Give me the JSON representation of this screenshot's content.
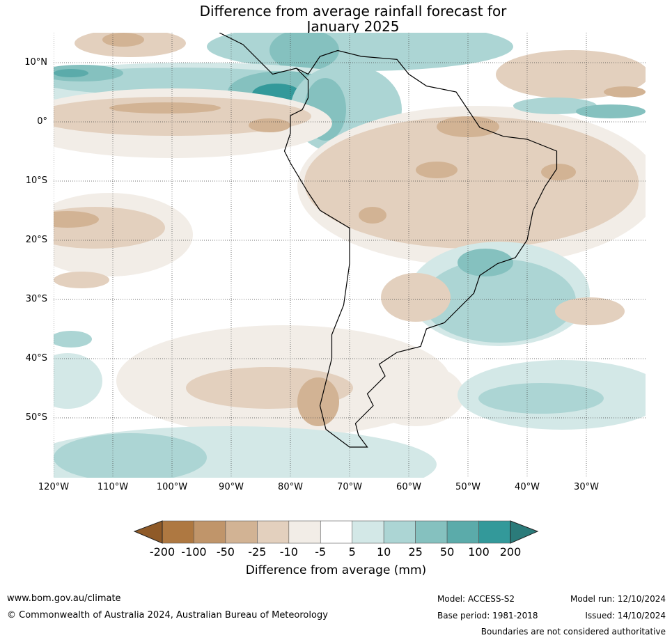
{
  "title_line1": "Difference from average rainfall forecast for",
  "title_line2": "January 2025",
  "map": {
    "lon_ticks": [
      "120°W",
      "110°W",
      "100°W",
      "90°W",
      "80°W",
      "70°W",
      "60°W",
      "50°W",
      "40°W",
      "30°W"
    ],
    "lat_ticks": [
      "10°N",
      "0°",
      "10°S",
      "20°S",
      "30°S",
      "40°S",
      "50°S"
    ]
  },
  "colorbar": {
    "labels": [
      "-200",
      "-100",
      "-50",
      "-25",
      "-10",
      "-5",
      "5",
      "10",
      "25",
      "50",
      "100",
      "200"
    ],
    "colors": [
      "#ae7841",
      "#c0956a",
      "#d2b394",
      "#e3d0be",
      "#f2ede7",
      "#ffffff",
      "#d3e8e7",
      "#acd5d4",
      "#85c1bf",
      "#5babaa",
      "#33999a"
    ],
    "extend_low_color": "#8f5a28",
    "extend_high_color": "#2b7b7a",
    "title": "Difference from average (mm)"
  },
  "footer": {
    "url": "www.bom.gov.au/climate",
    "copyright": "© Commonwealth of Australia 2024, Australian Bureau of Meteorology",
    "model": "Model: ACCESS-S2",
    "model_run": "Model run: 12/10/2024",
    "base_period": "Base period: 1981-2018",
    "issued": "Issued: 14/10/2024",
    "disclaimer": "Boundaries are not considered authoritative"
  }
}
